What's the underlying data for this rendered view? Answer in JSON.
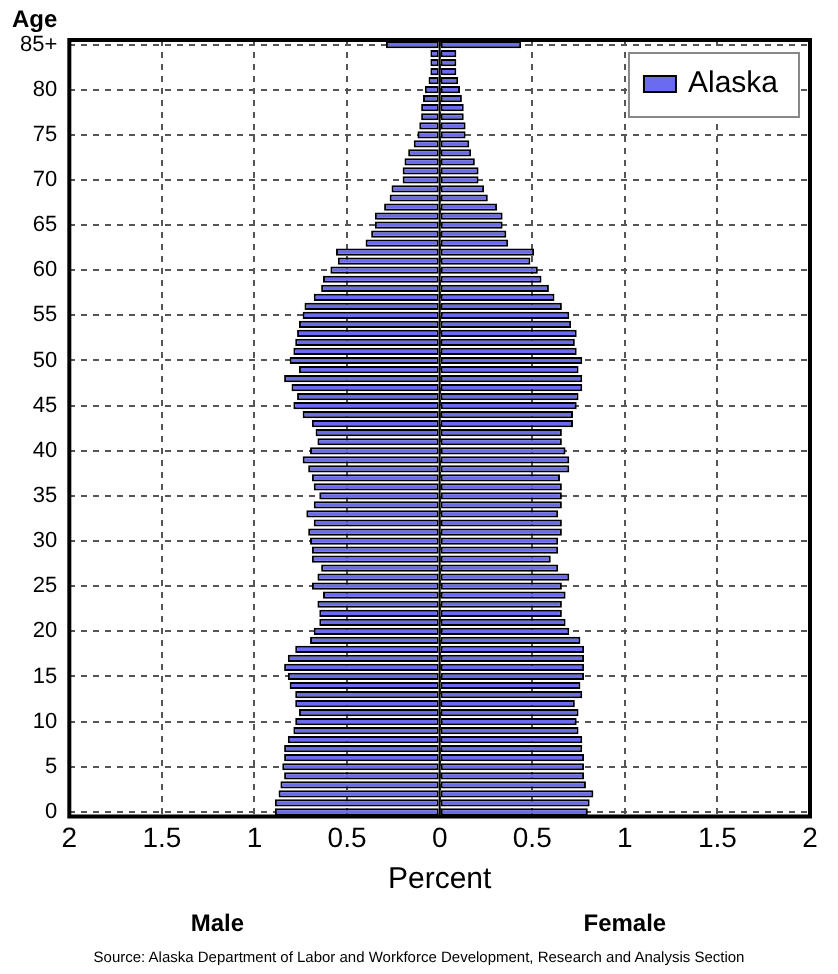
{
  "chart_data": {
    "type": "bar",
    "orientation": "horizontal",
    "stacked": true,
    "ylabel": "Age",
    "xlabel": "Percent",
    "categories": [
      "85+",
      null,
      null,
      null,
      null,
      "80",
      null,
      null,
      null,
      null,
      "75",
      null,
      null,
      null,
      null,
      "70",
      null,
      null,
      null,
      null,
      "65",
      null,
      null,
      null,
      null,
      "60",
      null,
      null,
      null,
      null,
      "55",
      null,
      null,
      null,
      null,
      "50",
      null,
      null,
      null,
      null,
      "45",
      null,
      null,
      null,
      null,
      "40",
      null,
      null,
      null,
      null,
      "35",
      null,
      null,
      null,
      null,
      "30",
      null,
      null,
      null,
      null,
      "25",
      null,
      null,
      null,
      null,
      "20",
      null,
      null,
      null,
      null,
      "15",
      null,
      null,
      null,
      null,
      "10",
      null,
      null,
      null,
      null,
      "5",
      null,
      null,
      null,
      null,
      "0"
    ],
    "series": [
      {
        "name": "Alaska",
        "color": "#6b6bef",
        "values": [
          0.44,
          0.09,
          0.09,
          0.09,
          0.1,
          0.11,
          0.12,
          0.13,
          0.13,
          0.14,
          0.14,
          0.16,
          0.17,
          0.19,
          0.21,
          0.21,
          0.24,
          0.26,
          0.31,
          0.34,
          0.34,
          0.36,
          0.37,
          0.51,
          0.49,
          0.53,
          0.55,
          0.59,
          0.62,
          0.66,
          0.7,
          0.71,
          0.74,
          0.73,
          0.74,
          0.77,
          0.75,
          0.77,
          0.77,
          0.75,
          0.74,
          0.72,
          0.72,
          0.66,
          0.66,
          0.68,
          0.7,
          0.7,
          0.65,
          0.66,
          0.66,
          0.66,
          0.64,
          0.66,
          0.66,
          0.64,
          0.64,
          0.6,
          0.64,
          0.7,
          0.66,
          0.68,
          0.66,
          0.66,
          0.68,
          0.7,
          0.76,
          0.78,
          0.78,
          0.78,
          0.78,
          0.76,
          0.77,
          0.73,
          0.75,
          0.74,
          0.75,
          0.77,
          0.77,
          0.78,
          0.78,
          0.78,
          0.79,
          0.83,
          0.81,
          0.8
        ]
      },
      {
        "color": "#6b6bef",
        "values": [
          -0.29,
          -0.05,
          -0.05,
          -0.05,
          -0.06,
          -0.08,
          -0.09,
          -0.1,
          -0.1,
          -0.11,
          -0.12,
          -0.14,
          -0.17,
          -0.19,
          -0.2,
          -0.2,
          -0.26,
          -0.27,
          -0.3,
          -0.35,
          -0.35,
          -0.37,
          -0.4,
          -0.56,
          -0.55,
          -0.59,
          -0.63,
          -0.64,
          -0.68,
          -0.73,
          -0.74,
          -0.76,
          -0.77,
          -0.78,
          -0.79,
          -0.81,
          -0.76,
          -0.84,
          -0.8,
          -0.77,
          -0.79,
          -0.74,
          -0.69,
          -0.67,
          -0.66,
          -0.7,
          -0.74,
          -0.71,
          -0.69,
          -0.68,
          -0.65,
          -0.68,
          -0.72,
          -0.68,
          -0.71,
          -0.7,
          -0.69,
          -0.69,
          -0.64,
          -0.66,
          -0.69,
          -0.63,
          -0.66,
          -0.65,
          -0.65,
          -0.68,
          -0.7,
          -0.78,
          -0.82,
          -0.84,
          -0.82,
          -0.81,
          -0.78,
          -0.78,
          -0.76,
          -0.78,
          -0.79,
          -0.82,
          -0.84,
          -0.84,
          -0.85,
          -0.84,
          -0.86,
          -0.87,
          -0.89,
          -0.89
        ]
      }
    ],
    "xlim": [
      -2,
      2
    ],
    "xticks": [
      {
        "value": -2,
        "label": "2"
      },
      {
        "value": -1.5,
        "label": "1.5"
      },
      {
        "value": -1,
        "label": "1"
      },
      {
        "value": -0.5,
        "label": "0.5"
      },
      0,
      {
        "value": 0.5,
        "label": "0.5"
      },
      1,
      1.5,
      2
    ],
    "grid": true,
    "legend": "top right",
    "annotations": [
      "Male",
      "Female",
      "Source: Alaska Department of Labor and Workforce Development, Research and Analysis Section"
    ]
  }
}
